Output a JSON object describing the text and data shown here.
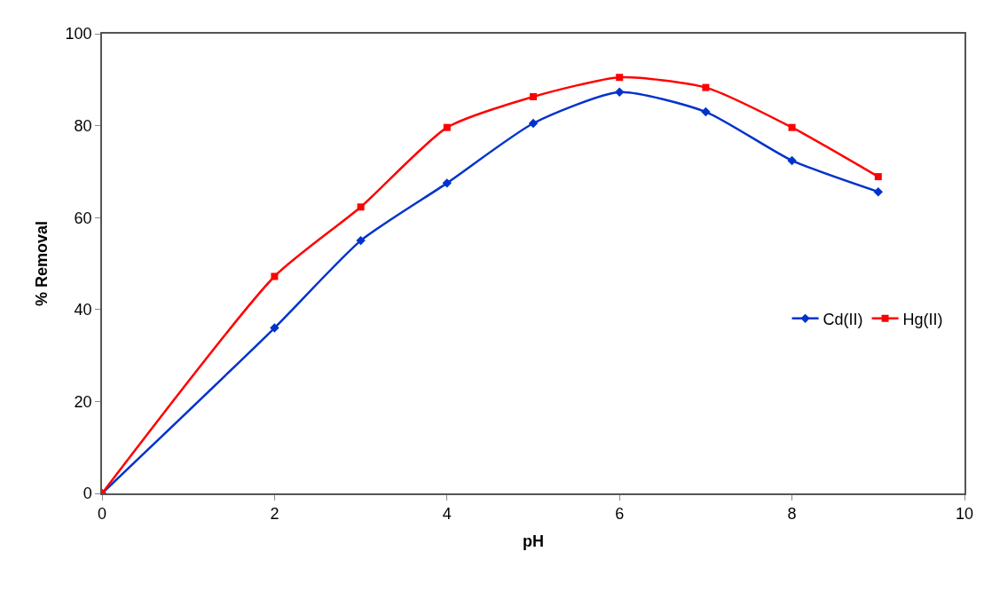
{
  "chart_data": {
    "type": "line",
    "xlabel": "pH",
    "ylabel": "% Removal",
    "x": [
      0,
      2,
      3,
      4,
      5,
      6,
      7,
      8,
      9
    ],
    "series": [
      {
        "name": "Cd(II)",
        "color": "#0033cc",
        "marker": "diamond",
        "values": [
          0,
          36,
          55,
          67.5,
          80.5,
          87.3,
          83,
          72.4,
          65.6
        ]
      },
      {
        "name": "Hg(II)",
        "color": "#ff0000",
        "marker": "square",
        "values": [
          0,
          47.2,
          62.3,
          79.6,
          86.3,
          90.5,
          88.3,
          79.6,
          68.9
        ]
      }
    ],
    "xlim": [
      0,
      10
    ],
    "xticks": [
      0,
      2,
      4,
      6,
      8,
      10
    ],
    "ylim": [
      0,
      100
    ],
    "yticks": [
      0,
      20,
      40,
      60,
      80,
      100
    ],
    "legend": "right",
    "line_style": "solid"
  }
}
